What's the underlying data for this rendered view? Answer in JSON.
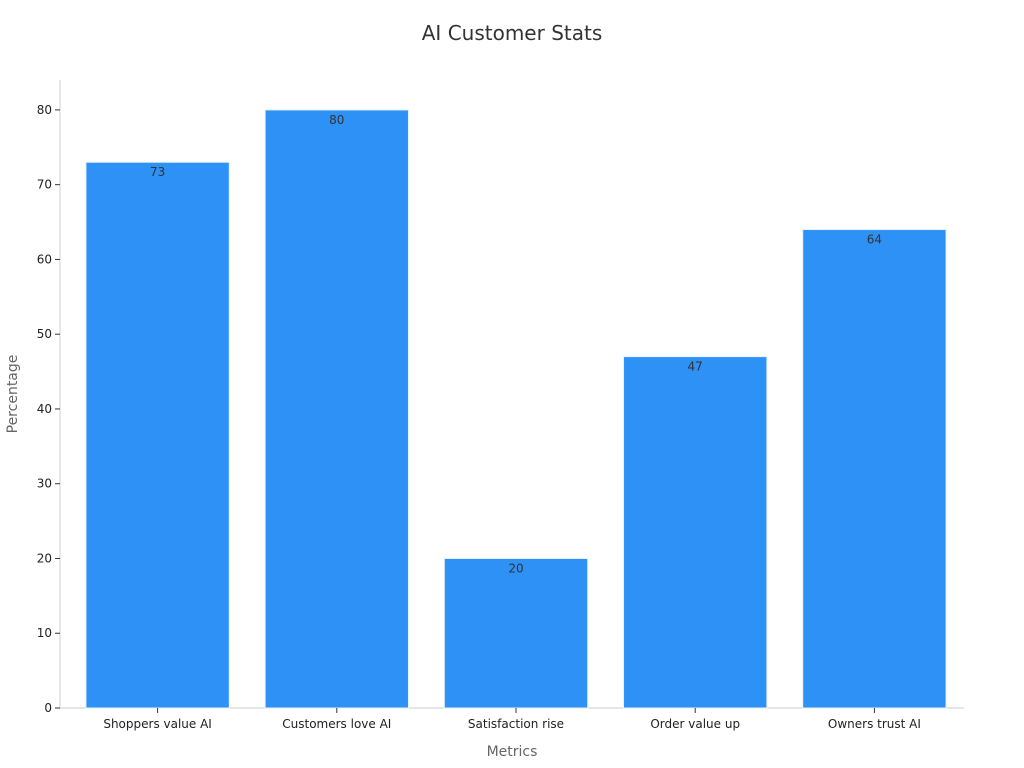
{
  "chart_data": {
    "type": "bar",
    "title": "AI Customer Stats",
    "xlabel": "Metrics",
    "ylabel": "Percentage",
    "categories": [
      "Shoppers value AI",
      "Customers love AI",
      "Satisfaction rise",
      "Order value up",
      "Owners trust AI"
    ],
    "values": [
      73,
      80,
      20,
      47,
      64
    ],
    "data_labels": [
      "73",
      "80",
      "20",
      "47",
      "64"
    ],
    "y_ticks": [
      "0",
      "10",
      "20",
      "30",
      "40",
      "50",
      "60",
      "70",
      "80"
    ],
    "ylim": [
      0,
      84
    ],
    "grid": false,
    "legend": "none",
    "bar_color": "#2e91f5",
    "bar_edge_color": "#e8f1fd"
  }
}
